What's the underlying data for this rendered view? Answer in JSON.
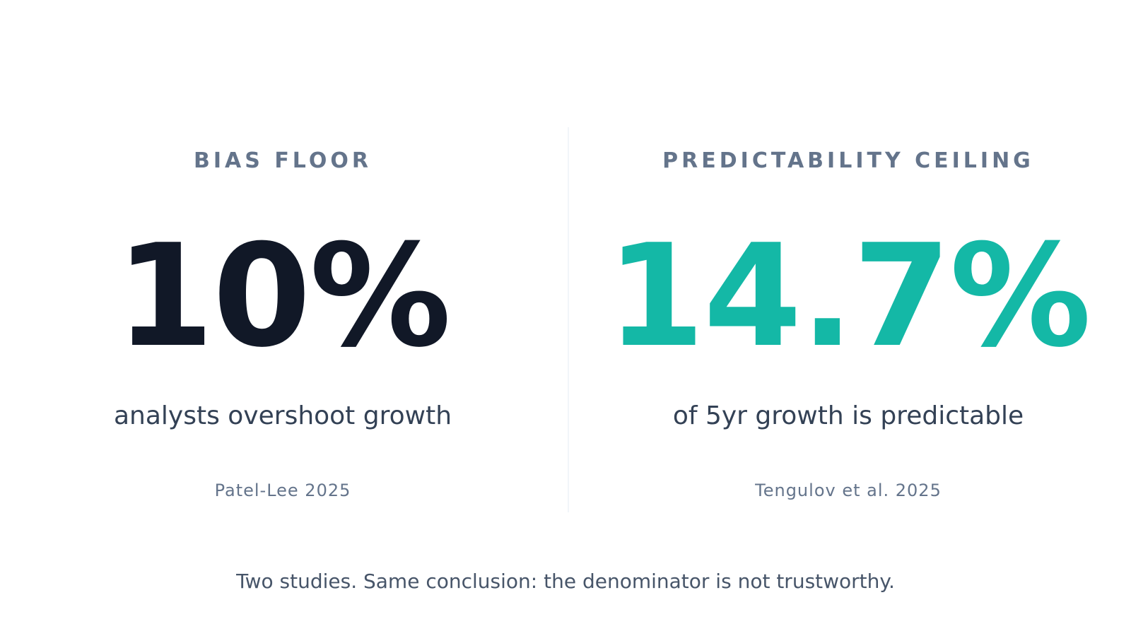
{
  "panels": [
    {
      "label": "BIAS FLOOR",
      "value": "10%",
      "caption": "analysts overshoot growth",
      "source": "Patel-Lee 2025"
    },
    {
      "label": "PREDICTABILITY CEILING",
      "value": "14.7%",
      "caption": "of 5yr growth is predictable",
      "source": "Tengulov et al. 2025"
    }
  ],
  "footer": "Two studies. Same conclusion: the denominator is not trustworthy."
}
